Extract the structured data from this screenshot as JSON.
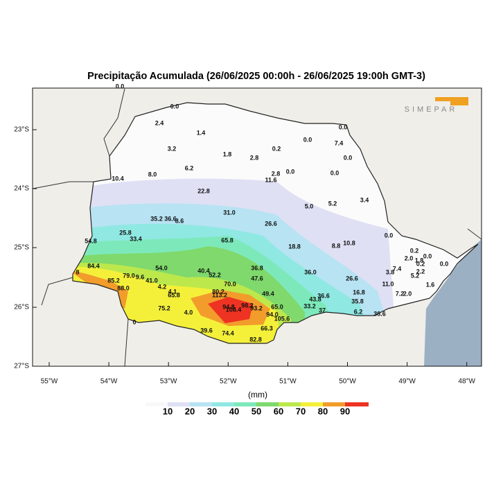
{
  "title": "Precipitação Acumulada (26/06/2025 00:00h - 26/06/2025 19:00h GMT-3)",
  "logo": "SIMEPAR",
  "lat_labels": [
    "23°S",
    "24°S",
    "25°S",
    "26°S",
    "27°S"
  ],
  "lon_labels": [
    "55°W",
    "54°W",
    "53°W",
    "52°W",
    "51°W",
    "50°W",
    "49°W",
    "48°W"
  ],
  "colorbar": {
    "unit": "(mm)",
    "labels": [
      10,
      20,
      30,
      40,
      50,
      60,
      70,
      80,
      90
    ]
  },
  "stations": [
    "0.0",
    "0.0",
    "2.4",
    "1.4",
    "0.0",
    "3.2",
    "1.8",
    "0.2",
    "0.0",
    "7.4",
    "2.8",
    "0.0",
    "6.2",
    "8.0",
    "10.4",
    "2.8",
    "0.0",
    "11.6",
    "0.0",
    "22.8",
    "3.4",
    "5.0",
    "5.2",
    "31.0",
    "35.2",
    "36.6",
    "8.6",
    "26.6",
    "25.8",
    "33.4",
    "0.0",
    "54.8",
    "65.8",
    "18.8",
    "8.8",
    "10.8",
    "0.2",
    "2.0",
    "1.8",
    "0.0",
    "84.4",
    "54.0",
    "36.8",
    "3.8",
    "7.4",
    "0.2",
    "0.0",
    "8",
    "79.0",
    "9.6",
    "41.0",
    "40.4",
    "52.2",
    "36.0",
    "26.6",
    "47.6",
    "2.2",
    "5.2",
    "85.2",
    "70.0",
    "88.0",
    "4.2",
    "11.0",
    "1.6",
    "4.1",
    "65.8",
    "80.2",
    "113.2",
    "49.4",
    "36.6",
    "43.8",
    "16.8",
    "7.2",
    "2.0",
    "35.8",
    "65.0",
    "33.2",
    "75.2",
    "94.8",
    "98.2",
    "108.4",
    "93.2",
    "4.0",
    "94.0",
    "6.2",
    "38.6",
    "105.6",
    "37",
    "66.3",
    "39.6",
    "74.4",
    "82.8",
    "0"
  ]
}
